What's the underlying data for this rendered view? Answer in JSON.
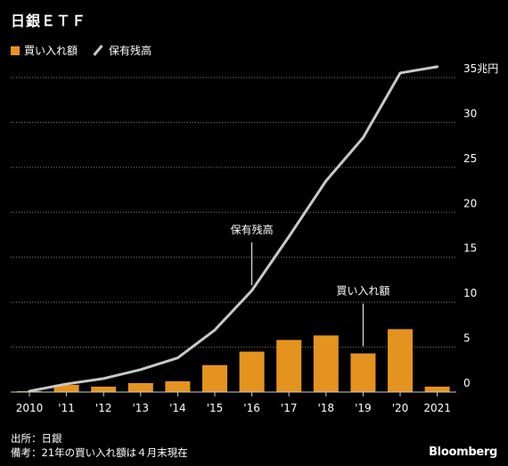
{
  "title": "日銀ＥＴＦ",
  "source": "出所：日銀",
  "note": "備考：21年の買い入れ額は４月末現在",
  "logo": "Bloomberg",
  "colors": {
    "bar": "#e5931f",
    "line": "#c8c8c8",
    "grid": "#7a7a7a",
    "text": "#ffffff"
  },
  "chart_data": {
    "type": "bar+line",
    "title": "日銀ＥＴＦ",
    "unit": "兆円",
    "categories": [
      "2010",
      "'11",
      "'12",
      "'13",
      "'14",
      "'15",
      "'16",
      "'17",
      "'18",
      "'19",
      "'20",
      "2021"
    ],
    "series": [
      {
        "name": "買い入れ額",
        "type": "bar",
        "values": [
          0.1,
          0.8,
          0.6,
          1.0,
          1.2,
          3.0,
          4.5,
          5.8,
          6.3,
          4.3,
          7.0,
          0.6
        ]
      },
      {
        "name": "保有残高",
        "type": "line",
        "values": [
          0.1,
          0.9,
          1.5,
          2.5,
          3.8,
          6.9,
          11.3,
          17.3,
          23.5,
          28.3,
          35.5,
          36.2
        ]
      }
    ],
    "ylim": [
      0,
      35
    ],
    "yticks": [
      0,
      5,
      10,
      15,
      20,
      25,
      30,
      35
    ],
    "ytick_labels": [
      "0",
      "5",
      "10",
      "15",
      "20",
      "25",
      "30",
      "35兆円"
    ],
    "annotations": [
      {
        "text": "保有残高",
        "series": "保有残高",
        "category": "'16"
      },
      {
        "text": "買い入れ額",
        "series": "買い入れ額",
        "category": "'19"
      }
    ],
    "grid": true,
    "legend": "top-left"
  }
}
